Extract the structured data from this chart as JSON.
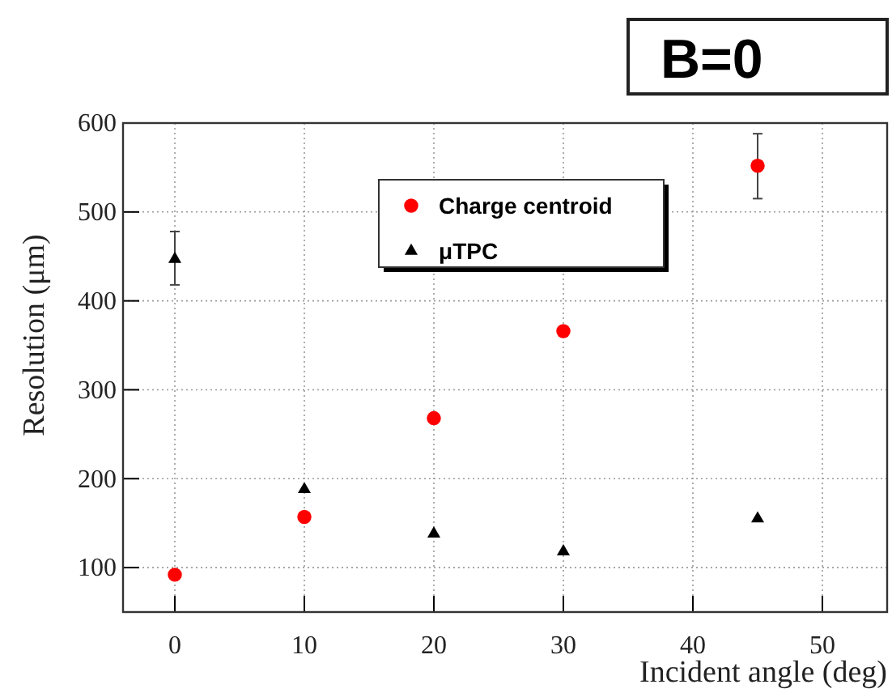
{
  "chart_data": {
    "type": "scatter",
    "xlabel": "Incident angle (deg)",
    "ylabel": "Resolution (μm)",
    "annotations": [
      "B=0"
    ],
    "xlim": [
      -4,
      55
    ],
    "ylim": [
      50,
      600
    ],
    "xticks": [
      0,
      10,
      20,
      30,
      40,
      50
    ],
    "yticks": [
      100,
      200,
      300,
      400,
      500,
      600
    ],
    "grid": true,
    "legend": "top",
    "series": [
      {
        "name": "Charge centroid",
        "color": "#ff0000",
        "marker": "circle",
        "x": [
          0,
          10,
          20,
          30,
          45
        ],
        "values": [
          92,
          157,
          268,
          366,
          552
        ],
        "errors": [
          null,
          null,
          null,
          null,
          [
            515,
            588
          ]
        ]
      },
      {
        "name": "μTPC",
        "color": "#000000",
        "marker": "triangle",
        "x": [
          0,
          10,
          20,
          30,
          45
        ],
        "values": [
          447,
          188,
          138,
          118,
          155
        ],
        "errors": [
          [
            418,
            478
          ],
          null,
          null,
          null,
          null
        ]
      }
    ]
  }
}
